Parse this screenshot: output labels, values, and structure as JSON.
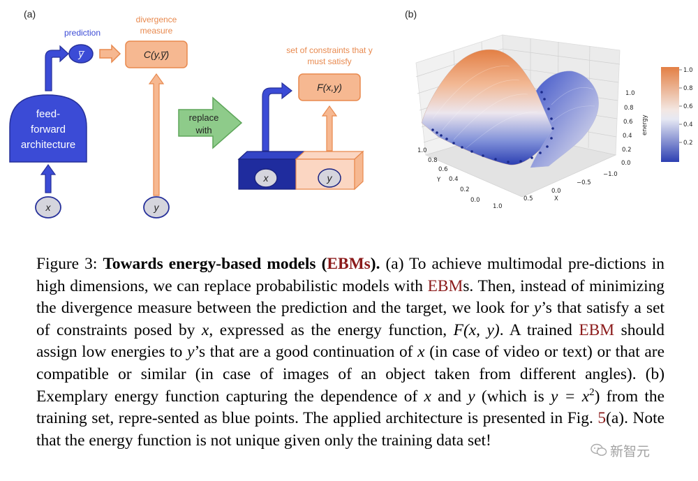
{
  "panel_a": {
    "label": "(a)",
    "prediction_label": "prediction",
    "prediction_node": "y̅",
    "divergence_label_line1": "divergence",
    "divergence_label_line2": "measure",
    "divergence_box": "C(y,y̅)",
    "ff_line1": "feed-",
    "ff_line2": "forward",
    "ff_line3": "architecture",
    "x_node": "x",
    "y_node": "y",
    "replace_line1": "replace",
    "replace_line2": "with",
    "constraints_line1": "set of constraints that y",
    "constraints_line2": "must satisfy",
    "energy_box": "F(x,y)",
    "x_block": "x",
    "y_block": "y"
  },
  "panel_b": {
    "label": "(b)",
    "x_axis_label": "X",
    "y_axis_label": "Y",
    "z_axis_label": "energy",
    "x_ticks": [
      "1.0",
      "0.5",
      "0.0",
      "−0.5",
      "−1.0"
    ],
    "y_ticks": [
      "0.0",
      "0.2",
      "0.4",
      "0.6",
      "0.8",
      "1.0"
    ],
    "z_ticks": [
      "0.0",
      "0.2",
      "0.4",
      "0.6",
      "0.8",
      "1.0"
    ],
    "colorbar_ticks": [
      "1.0",
      "0.8",
      "0.6",
      "0.4",
      "0.2"
    ],
    "colors": {
      "high": "#e8894e",
      "mid": "#ece8ec",
      "low": "#2c3fb2",
      "points": "#1b2a8a"
    }
  },
  "chart_data": {
    "type": "surface",
    "x_label": "X",
    "y_label": "Y",
    "z_label": "energy",
    "xlim": [
      -1.0,
      1.0
    ],
    "ylim": [
      0.0,
      1.0
    ],
    "zlim": [
      0.0,
      1.0
    ],
    "training_points_relation": "y = x^2",
    "colorbar_range": [
      0.0,
      1.0
    ]
  },
  "caption": {
    "fig_label": "Figure 3:",
    "title_pre": "Towards energy-based models (",
    "title_ref": "EBMs",
    "title_post": ").",
    "s1": " (a) To achieve multimodal pre-dictions in high dimensions, we can replace probabilistic models with ",
    "s1_ref": "EBM",
    "s1_end": "s. Then, instead of minimizing the divergence measure between the prediction and the target, we look for ",
    "s2_var": "y",
    "s2": "’s that satisfy a set of constraints posed by ",
    "s2_var2": "x",
    "s2_end": ", expressed as the energy function, ",
    "s3_func": "F(x, y)",
    "s3": ". A trained ",
    "s3_ref": "EBM",
    "s3_end": " should assign low energies to ",
    "s4_var": "y",
    "s4": "’s that are a good continuation of ",
    "s4_var2": "x",
    "s4_end": " (in case of video or text) or that are compatible or similar (in case of images of an object taken from different angles). (b) Exemplary energy function capturing the dependence of ",
    "s5_var": "x",
    "s5_and": " and ",
    "s5_var2": "y",
    "s5_open": " (which is ",
    "s5_eq": "y = x",
    "s5_sup": "2",
    "s5_close": ") from the training set, repre-sented as blue points. The applied architecture is presented in Fig. ",
    "s5_ref": "5",
    "s5_end": "(a). Note that the energy function is not unique given only the training data set!"
  },
  "watermark": {
    "text": "新智元"
  }
}
